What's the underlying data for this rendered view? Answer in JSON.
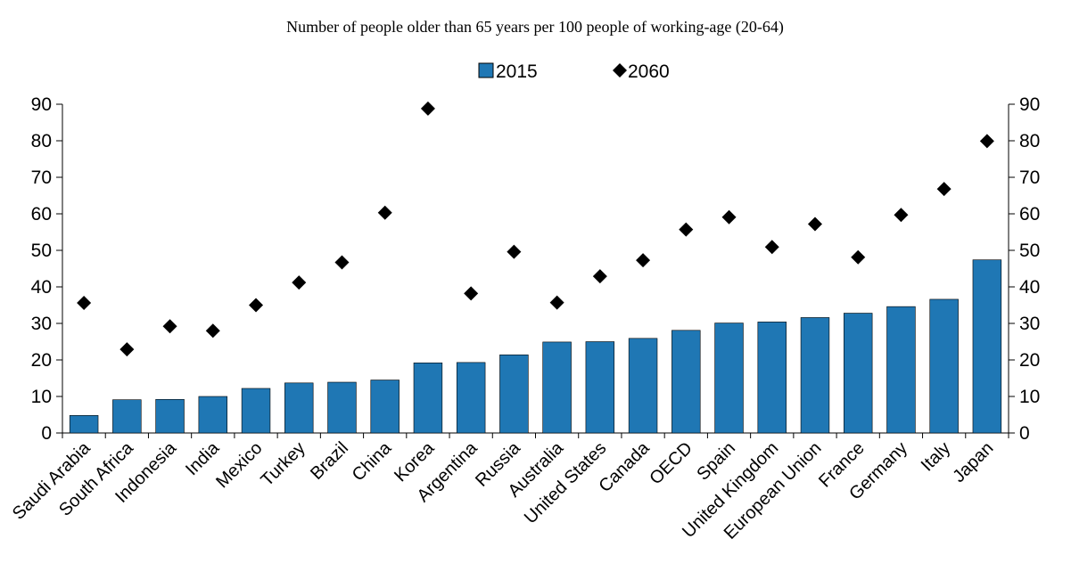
{
  "chart_data": {
    "type": "bar",
    "title": "Number of people older than 65 years per 100 people of working-age (20-64)",
    "categories": [
      "Saudi Arabia",
      "South Africa",
      "Indonesia",
      "India",
      "Mexico",
      "Turkey",
      "Brazil",
      "China",
      "Korea",
      "Argentina",
      "Russia",
      "Australia",
      "United States",
      "Canada",
      "OECD",
      "Spain",
      "United Kingdom",
      "European Union",
      "France",
      "Germany",
      "Italy",
      "Japan"
    ],
    "series": [
      {
        "name": "2015",
        "type": "bar",
        "color": "#1F77B4",
        "values": [
          4.8,
          9.1,
          9.2,
          10.0,
          12.2,
          13.7,
          13.9,
          14.5,
          19.2,
          19.3,
          21.4,
          24.9,
          25.0,
          25.9,
          28.1,
          30.1,
          30.4,
          31.6,
          32.8,
          34.6,
          36.6,
          47.4
        ]
      },
      {
        "name": "2060",
        "type": "scatter",
        "marker": "diamond",
        "color": "#000000",
        "values": [
          35.6,
          22.9,
          29.2,
          28.0,
          35.0,
          41.2,
          46.7,
          60.3,
          88.8,
          38.2,
          49.6,
          35.7,
          42.9,
          47.3,
          55.7,
          59.1,
          50.9,
          57.2,
          48.1,
          59.7,
          66.8,
          79.9
        ]
      }
    ],
    "ylim": [
      0,
      90
    ],
    "yticks": [
      "0",
      "10",
      "20",
      "30",
      "40",
      "50",
      "60",
      "70",
      "80",
      "90"
    ],
    "y_axis_both_sides": true,
    "grid": false,
    "legend_position": "top-center",
    "xlabel": "",
    "ylabel": ""
  }
}
